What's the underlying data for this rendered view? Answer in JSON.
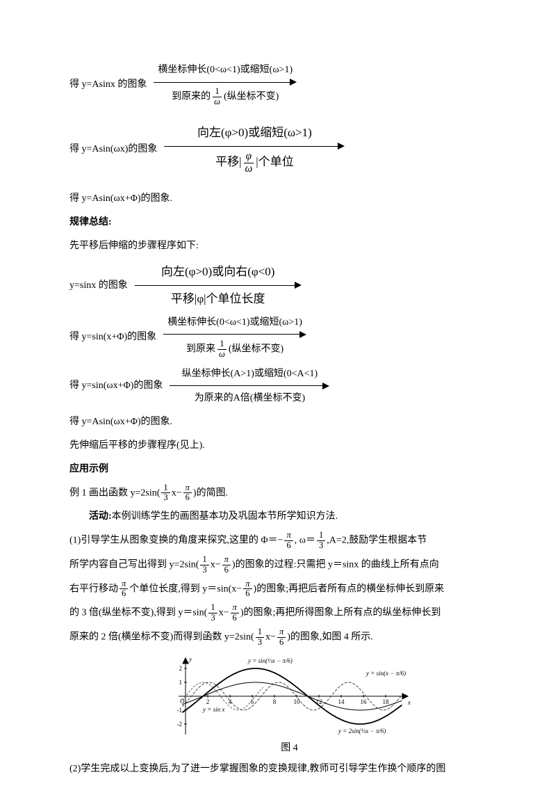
{
  "r1": {
    "pre": "得 y=Asinx 的图象",
    "top": "横坐标伸长(0<ω<1)或缩短(ω>1)",
    "botA": "到原来的",
    "botB": "(纵坐标不变)"
  },
  "r2": {
    "pre": "得 y=Asin(ωx)的图象",
    "top": "向左(φ>0)或缩短(ω>1)",
    "botA": "平移|",
    "botB": "|个单位"
  },
  "r3": "得 y=Asin(ωx+Φ)的图象.",
  "h1": "规律总结:",
  "l1": "先平移后伸缩的步骤程序如下:",
  "r4": {
    "pre": "y=sinx 的图象",
    "top": "向左(φ>0)或向右(φ<0)",
    "bot": "平移|φ|个单位长度"
  },
  "r5": {
    "pre": "得 y=sin(x+Φ)的图象",
    "top": "横坐标伸长(0<ω<1)或缩短(ω>1)",
    "botA": "到原来",
    "botB": "(纵坐标不变)"
  },
  "r6": {
    "pre": "得 y=sin(ωx+Φ)的图象",
    "top": "纵坐标伸长(A>1)或缩短(0<A<1)",
    "bot": "为原来的A倍(横坐标不变)"
  },
  "l2": "得 y=Asin(ωx+Φ)的图象.",
  "l3": "先伸缩后平移的步骤程序(见上).",
  "h2": "应用示例",
  "ex1a": "例 1 画出函数 y=2sin(",
  "ex1b": "x−",
  "ex1c": ")的简图.",
  "act": "活动:",
  "actText": "本例训练学生的画图基本功及巩固本节所学知识方法.",
  "p1a": "(1)引导学生从图象变换的角度来探究,这里的  Φ＝−",
  "p1b": ", ω＝",
  "p1c": ",A=2,鼓励学生根据本节",
  "p2a": "所学内容自己写出得到 y=2sin(",
  "p2b": "x−",
  "p2c": ")的图象的过程:只需把 y＝sinx 的曲线上所有点向",
  "p3a": "右平行移动",
  "p3b": "个单位长度,得到 y＝sin(x−",
  "p3c": ")的图象;再把后者所有点的横坐标伸长到原来",
  "p4a": "的 3 倍(纵坐标不变),得到 y＝sin(",
  "p4b": "x−",
  "p4c": ")的图象;再把所得图象上所有点的纵坐标伸长到",
  "p5a": "原来的 2 倍(横坐标不变)而得到函数 y=2sin(",
  "p5b": "x−",
  "p5c": ")的图象,如图 4 所示.",
  "figCaption": "图 4",
  "p6": "(2)学生完成以上变换后,为了进一步掌握图象的变换规律,教师可引导学生作换个顺序的图",
  "fr": {
    "one": "1",
    "omega": "ω",
    "phi": "φ",
    "three": "3",
    "pi": "π",
    "six": "6"
  },
  "xticks": [
    "2",
    "4",
    "6",
    "8",
    "10",
    "12",
    "14",
    "16",
    "18"
  ],
  "yticks": [
    "2",
    "1",
    "-1",
    "-2"
  ],
  "axes": {
    "O": "O",
    "x": "x",
    "y": "y"
  },
  "curveLabels": {
    "sinx": "y = sin x",
    "sin13": "y = sin(⅓x − π/6)",
    "sinxp6": "y = sin(x − π/6)",
    "big": "y = 2sin(⅓x − π/6)"
  },
  "colors": {
    "text": "#000000",
    "bg": "#ffffff",
    "fig_gray": "#666666"
  }
}
